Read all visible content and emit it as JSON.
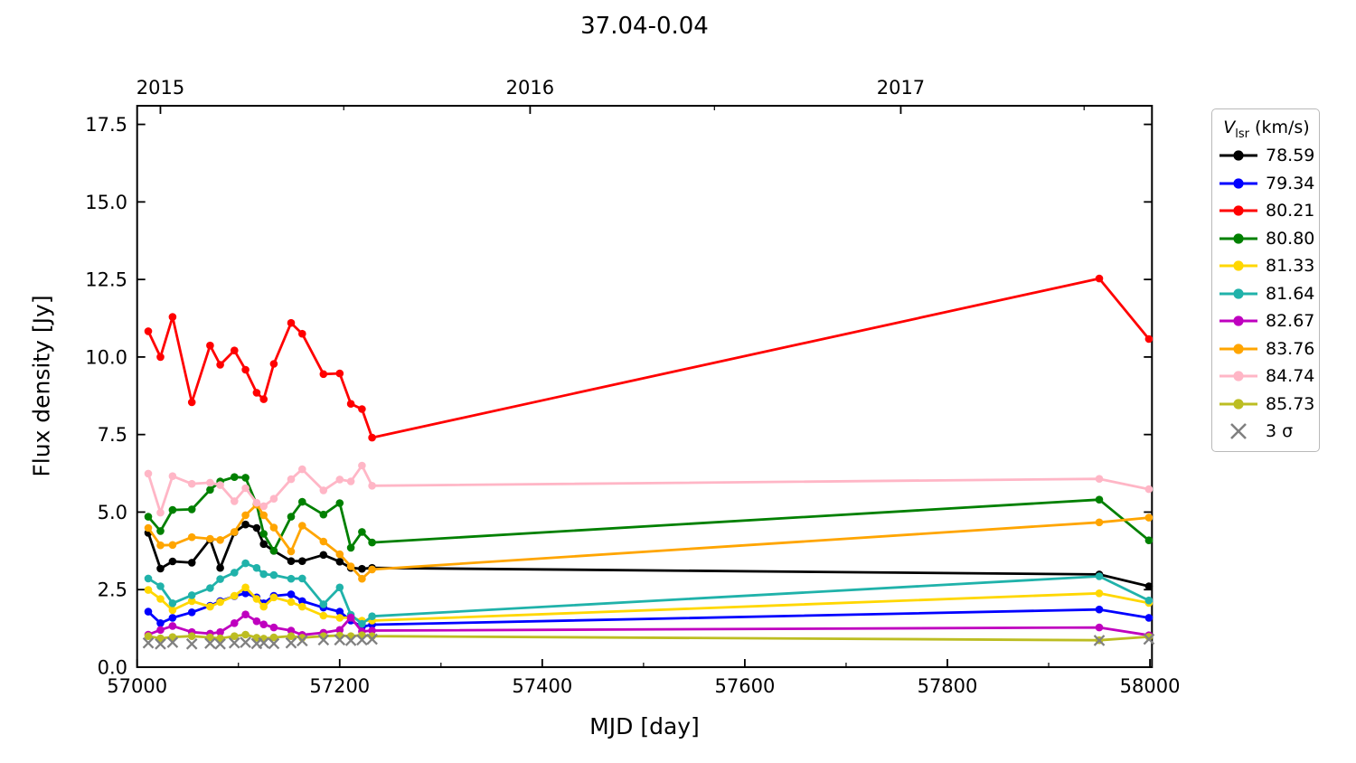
{
  "figure_title": "37.04-0.04",
  "legend": {
    "title_var": "V",
    "title_sub": "lsr",
    "title_rest": " (km/s)",
    "sigma_label": "3 σ"
  },
  "chart_data": {
    "type": "line",
    "title": "37.04-0.04",
    "xlabel": "MJD [day]",
    "ylabel": "Flux density [Jy]",
    "xlim": [
      57000,
      58002
    ],
    "ylim": [
      0,
      18.1
    ],
    "grid": false,
    "legend_position": "outside-top-right",
    "x_ticks": [
      57000,
      57200,
      57400,
      57600,
      57800,
      58000
    ],
    "x_minor_ticks": [
      57100,
      57300,
      57500,
      57700,
      57900
    ],
    "y_ticks": [
      0,
      2.5,
      5,
      7.5,
      10,
      12.5,
      15,
      17.5
    ],
    "y_tick_labels": [
      "0.0",
      "2.5",
      "5.0",
      "7.5",
      "10.0",
      "12.5",
      "15.0",
      "17.5"
    ],
    "top_axis": {
      "ticks": [
        {
          "mjd": 57023,
          "label": "2015"
        },
        {
          "mjd": 57388,
          "label": "2016"
        },
        {
          "mjd": 57754,
          "label": "2017"
        }
      ],
      "minor_ticks": [
        57204,
        57570,
        57935
      ]
    },
    "x": [
      57011,
      57023,
      57035,
      57054,
      57072,
      57082,
      57096,
      57107,
      57118,
      57125,
      57135,
      57152,
      57163,
      57184,
      57200,
      57211,
      57222,
      57232,
      57950,
      57999
    ],
    "series": [
      {
        "name": "78.59",
        "color": "#000000",
        "values": [
          4.33,
          3.18,
          3.41,
          3.37,
          4.12,
          3.2,
          4.35,
          4.6,
          4.49,
          3.97,
          3.75,
          3.42,
          3.42,
          3.62,
          3.4,
          3.2,
          3.17,
          3.2,
          2.99,
          2.61
        ]
      },
      {
        "name": "79.34",
        "color": "#0000ff",
        "values": [
          1.79,
          1.42,
          1.59,
          1.77,
          1.98,
          2.13,
          2.29,
          2.38,
          2.25,
          2.06,
          2.3,
          2.35,
          2.13,
          1.92,
          1.79,
          1.5,
          1.3,
          1.37,
          1.86,
          1.59
        ]
      },
      {
        "name": "80.21",
        "color": "#ff0000",
        "values": [
          10.83,
          10.0,
          11.29,
          8.54,
          10.37,
          9.75,
          10.21,
          9.59,
          8.85,
          8.64,
          9.78,
          11.1,
          10.75,
          9.45,
          9.47,
          8.49,
          8.32,
          7.4,
          12.53,
          10.58
        ]
      },
      {
        "name": "80.80",
        "color": "#008000",
        "values": [
          4.85,
          4.39,
          5.07,
          5.09,
          5.72,
          5.99,
          6.13,
          6.11,
          5.25,
          4.3,
          3.75,
          4.85,
          5.33,
          4.92,
          5.29,
          3.85,
          4.36,
          4.02,
          5.4,
          4.09
        ]
      },
      {
        "name": "81.33",
        "color": "#ffd700",
        "values": [
          2.49,
          2.2,
          1.84,
          2.13,
          1.95,
          2.1,
          2.3,
          2.57,
          2.2,
          1.95,
          2.25,
          2.1,
          1.95,
          1.66,
          1.59,
          1.6,
          1.5,
          1.5,
          2.38,
          2.07
        ]
      },
      {
        "name": "81.64",
        "color": "#20b2aa",
        "values": [
          2.86,
          2.61,
          2.06,
          2.32,
          2.55,
          2.84,
          3.05,
          3.35,
          3.2,
          3.0,
          2.97,
          2.85,
          2.86,
          2.03,
          2.57,
          1.69,
          1.4,
          1.64,
          2.93,
          2.15
        ]
      },
      {
        "name": "82.67",
        "color": "#bf00bf",
        "values": [
          1.05,
          1.2,
          1.33,
          1.13,
          1.08,
          1.13,
          1.42,
          1.7,
          1.48,
          1.38,
          1.28,
          1.18,
          1.04,
          1.11,
          1.2,
          1.6,
          1.15,
          1.18,
          1.28,
          1.03
        ]
      },
      {
        "name": "83.76",
        "color": "#ffa500",
        "values": [
          4.49,
          3.93,
          3.94,
          4.19,
          4.14,
          4.1,
          4.36,
          4.9,
          5.24,
          4.9,
          4.5,
          3.73,
          4.56,
          4.05,
          3.64,
          3.25,
          2.85,
          3.15,
          4.67,
          4.82
        ]
      },
      {
        "name": "84.74",
        "color": "#ffb6c6",
        "values": [
          6.24,
          4.98,
          6.16,
          5.91,
          5.95,
          5.87,
          5.35,
          5.77,
          5.3,
          5.19,
          5.43,
          6.06,
          6.38,
          5.7,
          6.05,
          5.99,
          6.5,
          5.85,
          6.07,
          5.74
        ]
      },
      {
        "name": "85.73",
        "color": "#bcbd22",
        "values": [
          1.0,
          0.93,
          0.97,
          1.0,
          0.96,
          0.93,
          1.0,
          1.05,
          0.95,
          0.92,
          0.96,
          1.0,
          0.95,
          1.0,
          1.02,
          1.0,
          1.03,
          1.0,
          0.87,
          0.98
        ]
      }
    ],
    "sigma": {
      "label": "3 σ",
      "color": "#808080",
      "values": [
        0.78,
        0.75,
        0.8,
        0.75,
        0.77,
        0.75,
        0.78,
        0.8,
        0.76,
        0.78,
        0.76,
        0.78,
        0.85,
        0.88,
        0.88,
        0.86,
        0.88,
        0.9,
        0.86,
        0.9
      ]
    }
  }
}
